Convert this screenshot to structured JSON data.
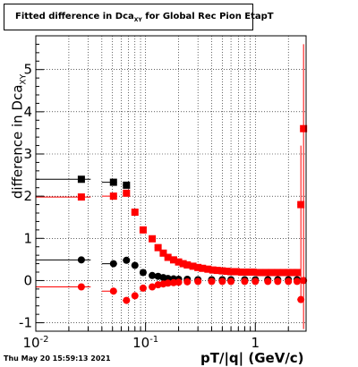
{
  "title": {
    "main": "Fitted difference in Dca",
    "sub": "XY",
    "rest": " for Global Rec Pion EtapT"
  },
  "timestamp": "Thu May 20 15:59:13 2021",
  "chart_data": {
    "type": "scatter",
    "title": "Fitted difference in Dca_XY for Global Rec Pion EtapT",
    "xlabel": "pT/|q| (GeV/c)",
    "ylabel": "difference in Dca_XY",
    "x_scale": "log",
    "xlim": [
      0.01,
      2.9
    ],
    "ylim": [
      -1.2,
      5.8
    ],
    "grid": true,
    "x_ticks": [
      "10^-2",
      "10^-1",
      "1"
    ],
    "y_ticks": [
      "-1",
      "0",
      "1",
      "2",
      "3",
      "4",
      "5"
    ],
    "series": [
      {
        "color": "#000000",
        "marker": "square",
        "x": [
          0.026,
          0.051,
          0.067
        ],
        "y": [
          2.4,
          2.33,
          2.26
        ],
        "xerr_low": [
          0.016,
          0.011,
          0.005
        ]
      },
      {
        "color": "#ff0000",
        "marker": "square",
        "x": [
          0.026,
          0.051,
          0.067,
          0.08,
          0.095,
          0.115,
          0.13,
          0.145,
          0.16,
          0.18,
          0.2,
          0.22,
          0.24,
          0.27,
          0.3,
          0.33,
          0.37,
          0.41,
          0.45,
          0.5,
          0.55,
          0.6,
          0.67,
          0.75,
          0.85,
          0.95,
          1.1,
          1.25,
          1.4,
          1.6,
          1.8,
          2.0,
          2.2,
          2.4,
          2.6,
          2.75
        ],
        "y": [
          1.98,
          2.0,
          2.07,
          1.62,
          1.2,
          0.99,
          0.78,
          0.65,
          0.55,
          0.49,
          0.44,
          0.4,
          0.37,
          0.34,
          0.31,
          0.29,
          0.27,
          0.25,
          0.24,
          0.23,
          0.22,
          0.21,
          0.21,
          0.2,
          0.2,
          0.2,
          0.19,
          0.19,
          0.19,
          0.19,
          0.19,
          0.19,
          0.19,
          0.19,
          1.8,
          3.6
        ],
        "xerr_low": [
          0.016,
          0.011,
          0.005
        ]
      },
      {
        "color": "#000000",
        "marker": "circle",
        "x": [
          0.026,
          0.051,
          0.067,
          0.08,
          0.095,
          0.115,
          0.13,
          0.145,
          0.16,
          0.18,
          0.2,
          0.24,
          0.3,
          0.4,
          0.5,
          0.6,
          0.8,
          1.0,
          1.3,
          1.6,
          2.0,
          2.4
        ],
        "y": [
          0.49,
          0.4,
          0.48,
          0.36,
          0.19,
          0.12,
          0.1,
          0.07,
          0.05,
          0.04,
          0.03,
          0.03,
          0.02,
          0.02,
          0.02,
          0.02,
          0.02,
          0.02,
          0.02,
          0.02,
          0.02,
          0.02
        ],
        "xerr_low": [
          0.016,
          0.011,
          0.005
        ]
      },
      {
        "color": "#ff0000",
        "marker": "circle",
        "x": [
          0.026,
          0.051,
          0.067,
          0.08,
          0.095,
          0.115,
          0.13,
          0.145,
          0.16,
          0.18,
          0.2,
          0.24,
          0.3,
          0.4,
          0.5,
          0.6,
          0.8,
          1.0,
          1.3,
          1.6,
          2.0,
          2.4,
          2.6,
          2.75
        ],
        "y": [
          -0.15,
          -0.25,
          -0.47,
          -0.36,
          -0.18,
          -0.15,
          -0.1,
          -0.08,
          -0.06,
          -0.05,
          -0.04,
          -0.03,
          -0.02,
          -0.02,
          -0.02,
          -0.02,
          -0.02,
          -0.02,
          -0.02,
          -0.02,
          -0.02,
          -0.02,
          -0.45,
          0.0
        ],
        "xerr_low": [
          0.016,
          0.011,
          0.005
        ]
      }
    ]
  }
}
